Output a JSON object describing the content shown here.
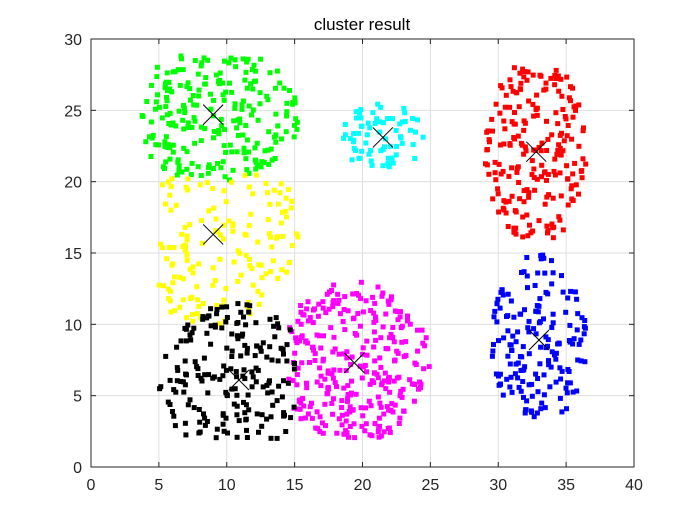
{
  "chart_data": {
    "type": "scatter",
    "title": "cluster result",
    "xlabel": "",
    "ylabel": "",
    "xlim": [
      0,
      40
    ],
    "ylim": [
      0,
      30
    ],
    "xticks": [
      0,
      5,
      10,
      15,
      20,
      25,
      30,
      35,
      40
    ],
    "yticks": [
      0,
      5,
      10,
      15,
      20,
      25,
      30
    ],
    "grid": true,
    "legend": "none",
    "marker": "square",
    "centroid_marker": "x",
    "series": [
      {
        "color": "#00ff00",
        "center": [
          9.0,
          24.7
        ],
        "count": 230,
        "x_range": [
          3.5,
          15.5
        ],
        "y_range": [
          20.0,
          29.0
        ]
      },
      {
        "color": "#ffff00",
        "center": [
          9.0,
          16.3
        ],
        "count": 150,
        "x_range": [
          5.0,
          15.5
        ],
        "y_range": [
          10.0,
          20.5
        ]
      },
      {
        "color": "#00ffff",
        "center": [
          21.5,
          23.1
        ],
        "count": 70,
        "x_range": [
          18.5,
          24.5
        ],
        "y_range": [
          21.0,
          25.5
        ]
      },
      {
        "color": "#ff0000",
        "center": [
          32.8,
          22.1
        ],
        "count": 210,
        "x_range": [
          29.0,
          36.5
        ],
        "y_range": [
          15.5,
          28.0
        ]
      },
      {
        "color": "#0000ff",
        "center": [
          33.0,
          8.9
        ],
        "count": 170,
        "x_range": [
          29.5,
          36.5
        ],
        "y_range": [
          3.5,
          15.0
        ]
      },
      {
        "color": "#ff00ff",
        "center": [
          19.4,
          7.3
        ],
        "count": 300,
        "x_range": [
          14.5,
          25.0
        ],
        "y_range": [
          2.0,
          13.0
        ]
      },
      {
        "color": "#000000",
        "center": [
          10.9,
          6.1
        ],
        "count": 190,
        "x_range": [
          5.0,
          15.0
        ],
        "y_range": [
          2.0,
          11.5
        ]
      }
    ]
  }
}
